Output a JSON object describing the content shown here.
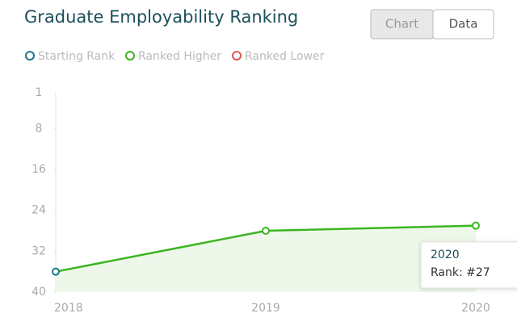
{
  "chart_data": {
    "type": "line",
    "title": "Graduate Employability Ranking",
    "categories": [
      "2018",
      "2019",
      "2020"
    ],
    "legend": [
      {
        "name": "Starting Rank",
        "color": "#1a7a8a"
      },
      {
        "name": "Ranked Higher",
        "color": "#3cb521"
      },
      {
        "name": "Ranked Lower",
        "color": "#e05555"
      }
    ],
    "series": [
      {
        "name": "Ranked Higher",
        "color": "#3cb521",
        "values": [
          36,
          28,
          27
        ],
        "point_colors": [
          "#1a7a8a",
          "#3cb521",
          "#3cb521"
        ]
      }
    ],
    "area_color": "#eef8ea",
    "ylim": [
      40,
      1
    ],
    "yticks": [
      1,
      8,
      16,
      24,
      32,
      40
    ],
    "tooltip": {
      "title": "2020",
      "text": "Rank: #27"
    }
  },
  "ui": {
    "tabs": [
      "Chart",
      "Data"
    ],
    "active_tab": 0
  }
}
